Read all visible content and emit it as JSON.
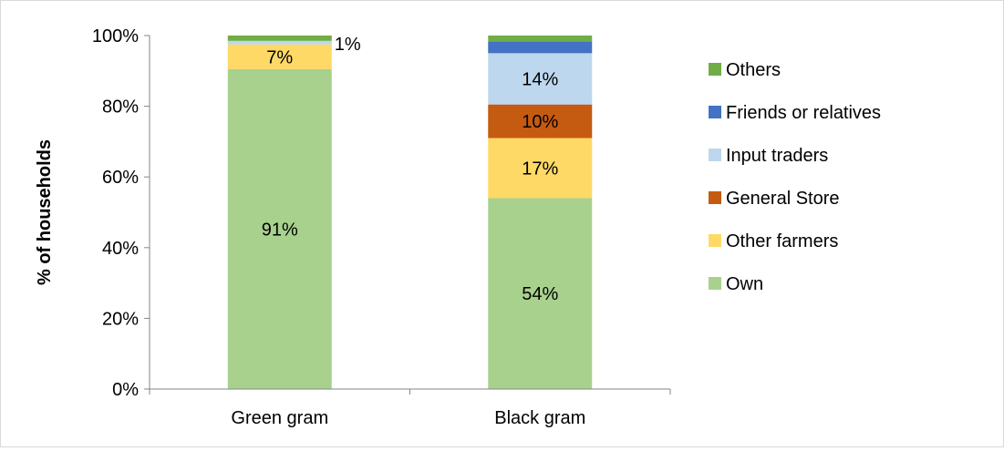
{
  "chart_data": {
    "type": "bar",
    "stacked": true,
    "title": "",
    "xlabel": "",
    "ylabel": "% of households",
    "ylim": [
      0,
      100
    ],
    "yticks": [
      "0%",
      "20%",
      "40%",
      "60%",
      "80%",
      "100%"
    ],
    "categories": [
      "Green gram",
      "Black gram"
    ],
    "legend_position": "right",
    "series": [
      {
        "name": "Own",
        "color": "#a9d18e",
        "values": [
          90.5,
          54
        ],
        "labels": [
          "91%",
          "54%"
        ]
      },
      {
        "name": "Other farmers",
        "color": "#ffd966",
        "values": [
          7,
          17
        ],
        "labels": [
          "7%",
          "17%"
        ]
      },
      {
        "name": "General Store",
        "color": "#c55a11",
        "values": [
          0,
          9.5
        ],
        "labels": [
          "",
          "10%"
        ]
      },
      {
        "name": "Input traders",
        "color": "#bdd7ee",
        "values": [
          1,
          14.5
        ],
        "labels": [
          "1%",
          "14%"
        ]
      },
      {
        "name": "Friends or relatives",
        "color": "#4472c4",
        "values": [
          0,
          3.3
        ],
        "labels": [
          "",
          ""
        ]
      },
      {
        "name": "Others",
        "color": "#70ad47",
        "values": [
          1.5,
          1.7
        ],
        "labels": [
          "",
          ""
        ]
      }
    ]
  }
}
